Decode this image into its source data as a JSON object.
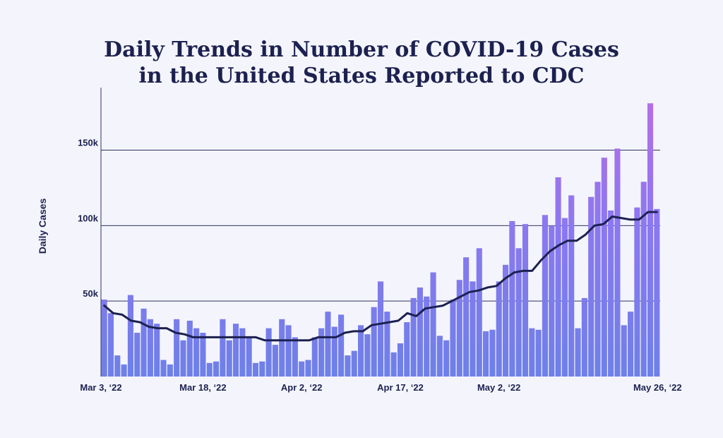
{
  "chart_data": {
    "type": "bar",
    "title_lines": [
      "Daily Trends in Number of COVID-19 Cases",
      "in the United States Reported to CDC"
    ],
    "ylabel": "Daily Cases",
    "ylim": [
      0,
      190000
    ],
    "yticks": [
      {
        "value": 50000,
        "label": "50k"
      },
      {
        "value": 100000,
        "label": "100k"
      },
      {
        "value": 150000,
        "label": "150k"
      }
    ],
    "grid": true,
    "xticks": [
      {
        "index": 0,
        "label": "Mar 3, ‘22"
      },
      {
        "index": 15,
        "label": "Mar 18, ‘22"
      },
      {
        "index": 30,
        "label": "Apr 2, ‘22"
      },
      {
        "index": 45,
        "label": "Apr 17, ‘22"
      },
      {
        "index": 60,
        "label": "May 2, ‘22"
      },
      {
        "index": 84,
        "label": "May 26, ‘22"
      }
    ],
    "colors": {
      "bar_bottom": "#6e80e8",
      "bar_top_early": "#8b78f0",
      "bar_top_late": "#b46ee8",
      "average_line": "#1c2150"
    },
    "series": [
      {
        "values": [
          51000,
          42000,
          14000,
          8000,
          54000,
          29000,
          45000,
          38000,
          35000,
          11000,
          8000,
          38000,
          24000,
          37000,
          32000,
          29000,
          9000,
          10000,
          38000,
          24000,
          35000,
          32000,
          26000,
          9000,
          10000,
          32000,
          21000,
          38000,
          34000,
          26000,
          10000,
          11000,
          26000,
          32000,
          43000,
          33000,
          41000,
          14000,
          17000,
          34000,
          28000,
          46000,
          63000,
          43000,
          16000,
          22000,
          36000,
          52000,
          59000,
          53000,
          69000,
          27000,
          24000,
          51000,
          64000,
          79000,
          63000,
          85000,
          30000,
          31000,
          63000,
          74000,
          103000,
          85000,
          101000,
          32000,
          31000,
          107000,
          100000,
          132000,
          105000,
          120000,
          32000,
          52000,
          119000,
          129000,
          145000,
          110000,
          151000,
          34000,
          43000,
          112000,
          129000,
          181000,
          111000
        ]
      },
      {
        "values": [
          47000,
          42000,
          41000,
          37000,
          36000,
          33000,
          32000,
          32000,
          29000,
          28000,
          26000,
          26000,
          26000,
          26000,
          26000,
          26000,
          26000,
          26000,
          24000,
          24000,
          24000,
          24000,
          24000,
          24000,
          26000,
          26000,
          26000,
          29000,
          30000,
          30000,
          34000,
          35000,
          36000,
          37000,
          42000,
          40000,
          45000,
          46000,
          47000,
          50000,
          53000,
          56000,
          57000,
          59000,
          60000,
          65000,
          69000,
          70000,
          70000,
          77000,
          83000,
          87000,
          90000,
          90000,
          94000,
          100000,
          101000,
          106000,
          105000,
          104000,
          104000,
          109000,
          109000
        ]
      }
    ]
  }
}
